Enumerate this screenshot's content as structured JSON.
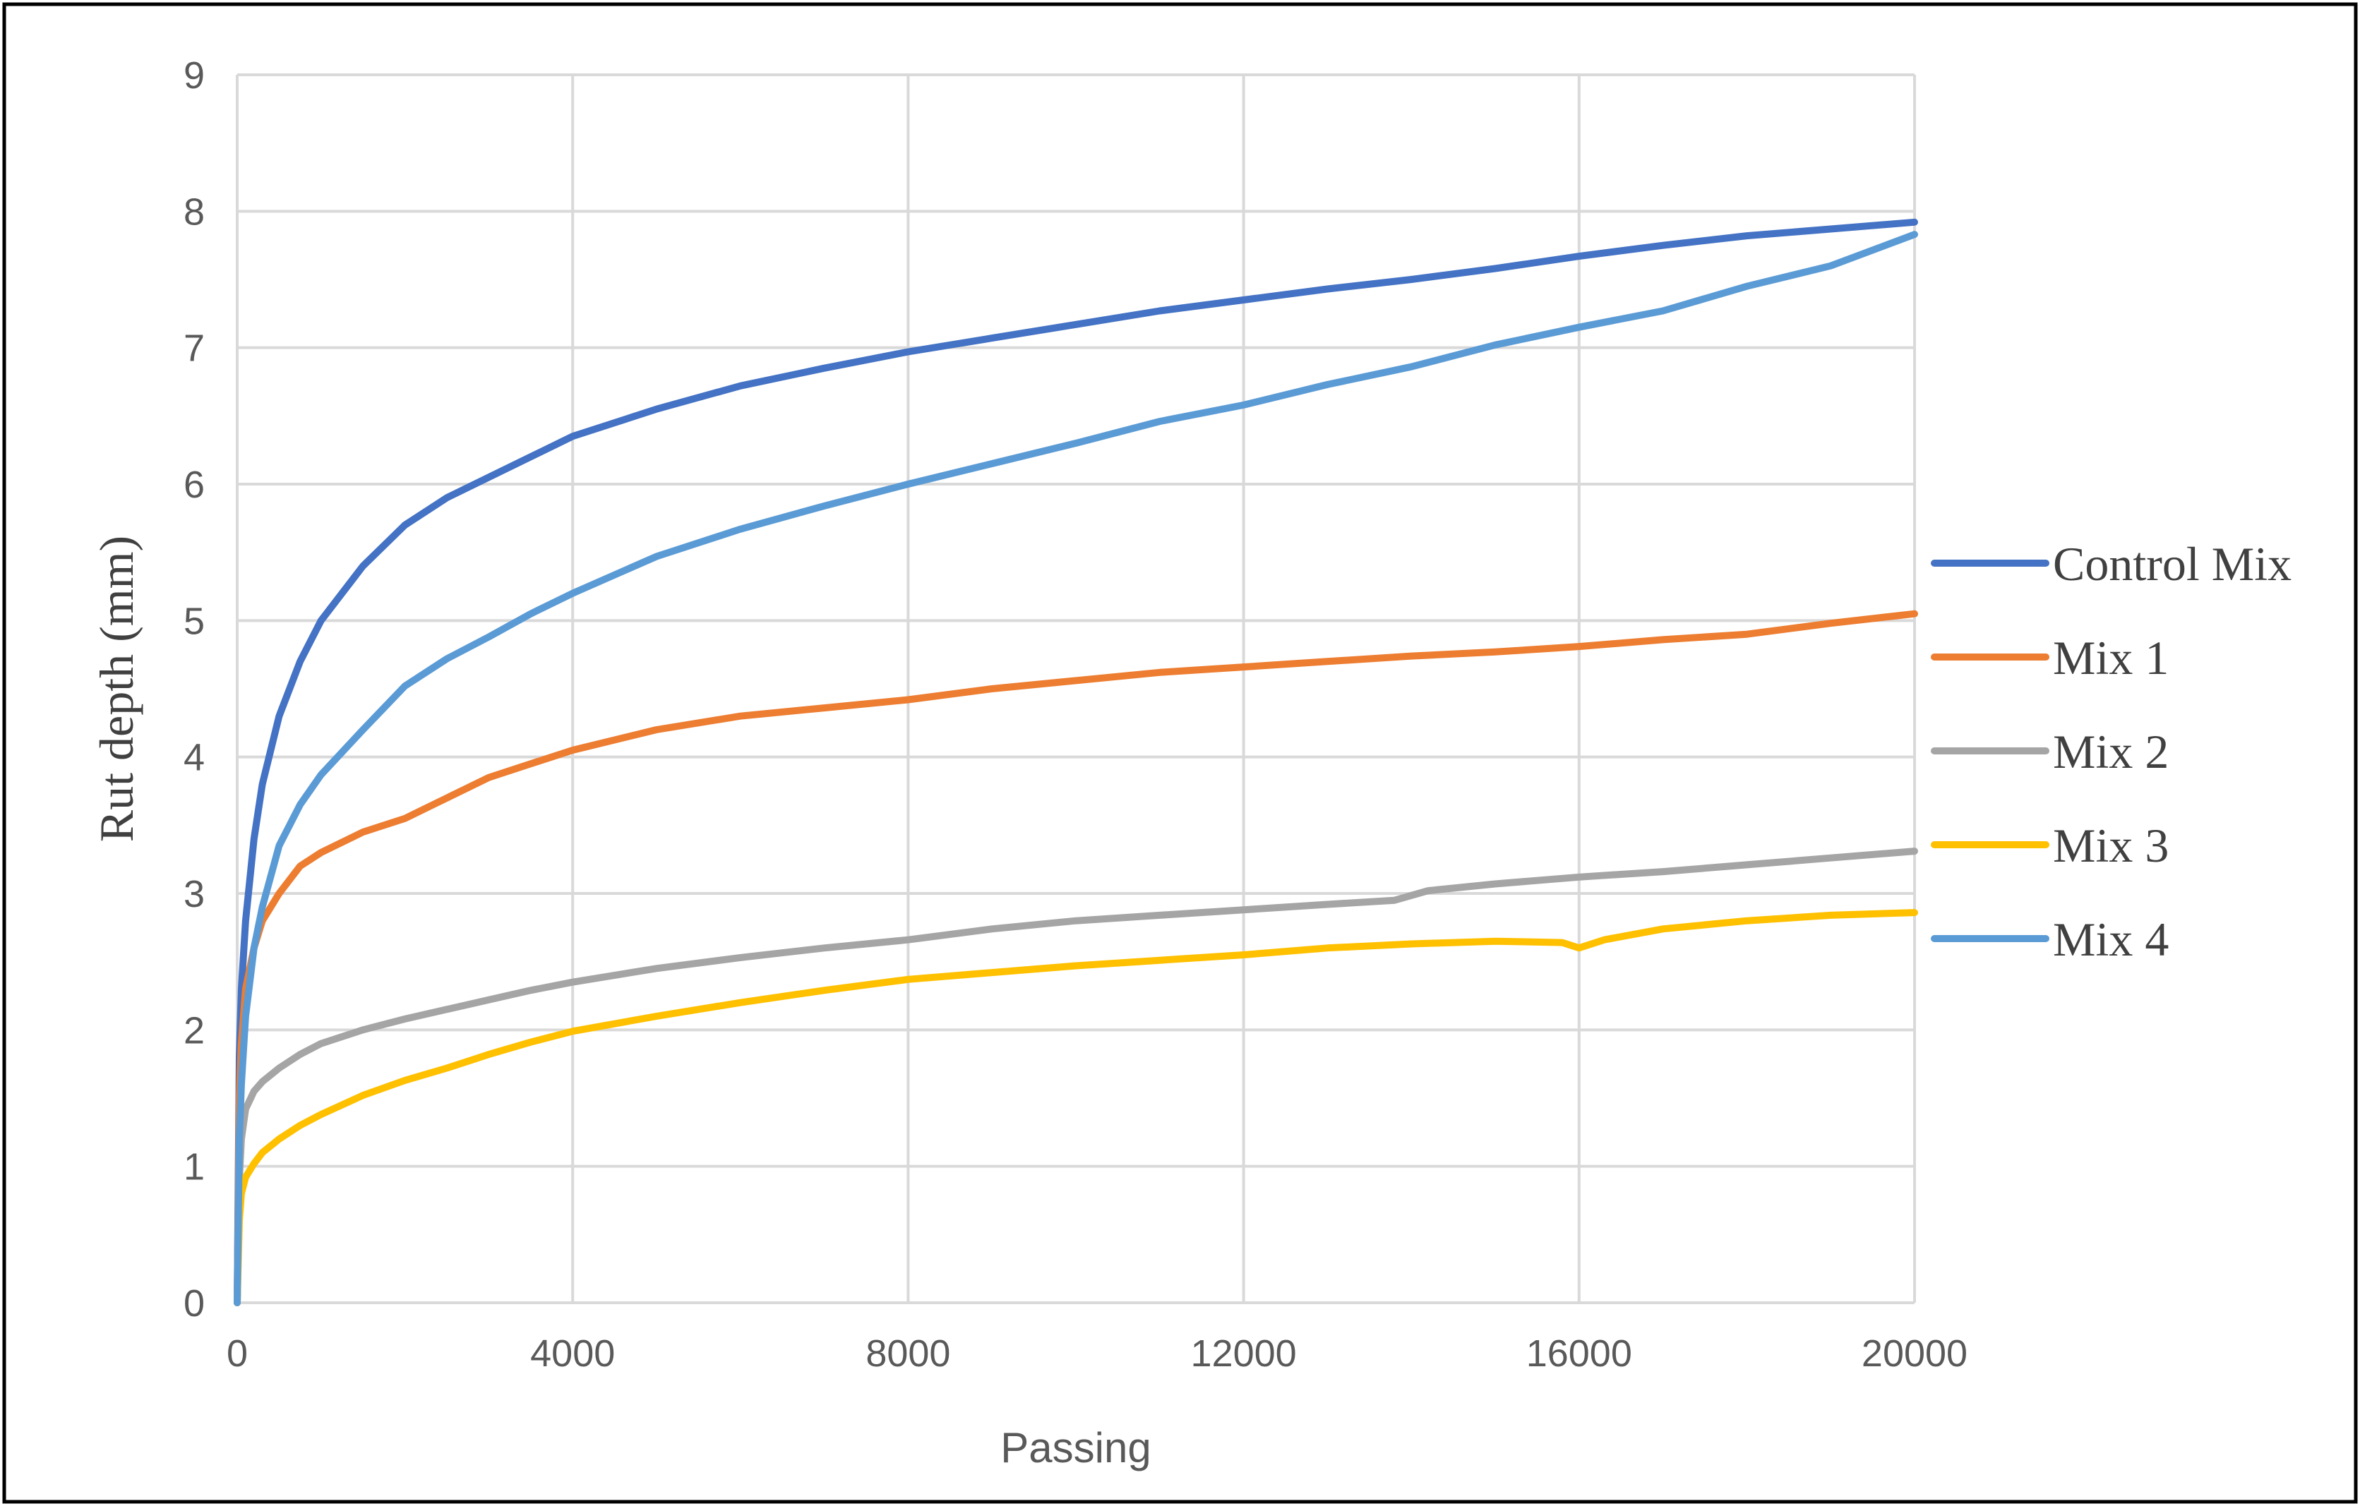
{
  "chart_data": {
    "type": "line",
    "title": "",
    "xlabel": "Passing",
    "ylabel": "Rut depth (mm)",
    "xlim": [
      0,
      20000
    ],
    "ylim": [
      0,
      9
    ],
    "x_ticks": [
      "0",
      "4000",
      "8000",
      "12000",
      "16000",
      "20000"
    ],
    "y_ticks": [
      "0",
      "1",
      "2",
      "3",
      "4",
      "5",
      "6",
      "7",
      "8",
      "9"
    ],
    "grid": true,
    "legend_position": "right",
    "series": [
      {
        "name": "Control Mix",
        "color": "#4472C4",
        "points": [
          [
            0,
            0
          ],
          [
            25,
            1.8
          ],
          [
            50,
            2.3
          ],
          [
            100,
            2.8
          ],
          [
            200,
            3.4
          ],
          [
            300,
            3.8
          ],
          [
            500,
            4.3
          ],
          [
            750,
            4.7
          ],
          [
            1000,
            5.0
          ],
          [
            1500,
            5.4
          ],
          [
            2000,
            5.7
          ],
          [
            2500,
            5.9
          ],
          [
            3000,
            6.05
          ],
          [
            3500,
            6.2
          ],
          [
            4000,
            6.35
          ],
          [
            5000,
            6.55
          ],
          [
            6000,
            6.72
          ],
          [
            7000,
            6.85
          ],
          [
            8000,
            6.97
          ],
          [
            9000,
            7.07
          ],
          [
            10000,
            7.17
          ],
          [
            11000,
            7.27
          ],
          [
            12000,
            7.35
          ],
          [
            13000,
            7.43
          ],
          [
            14000,
            7.5
          ],
          [
            15000,
            7.58
          ],
          [
            16000,
            7.67
          ],
          [
            17000,
            7.75
          ],
          [
            18000,
            7.82
          ],
          [
            19000,
            7.87
          ],
          [
            20000,
            7.92
          ]
        ]
      },
      {
        "name": "Mix 1",
        "color": "#ED7D31",
        "points": [
          [
            0,
            0
          ],
          [
            25,
            1.5
          ],
          [
            50,
            1.9
          ],
          [
            100,
            2.3
          ],
          [
            200,
            2.6
          ],
          [
            300,
            2.8
          ],
          [
            500,
            3.0
          ],
          [
            750,
            3.2
          ],
          [
            1000,
            3.3
          ],
          [
            1500,
            3.45
          ],
          [
            2000,
            3.55
          ],
          [
            2500,
            3.7
          ],
          [
            3000,
            3.85
          ],
          [
            3500,
            3.95
          ],
          [
            4000,
            4.05
          ],
          [
            5000,
            4.2
          ],
          [
            6000,
            4.3
          ],
          [
            7000,
            4.36
          ],
          [
            8000,
            4.42
          ],
          [
            9000,
            4.5
          ],
          [
            10000,
            4.56
          ],
          [
            11000,
            4.62
          ],
          [
            12000,
            4.66
          ],
          [
            13000,
            4.7
          ],
          [
            14000,
            4.74
          ],
          [
            15000,
            4.77
          ],
          [
            16000,
            4.81
          ],
          [
            17000,
            4.86
          ],
          [
            18000,
            4.9
          ],
          [
            19000,
            4.98
          ],
          [
            20000,
            5.05
          ]
        ]
      },
      {
        "name": "Mix 2",
        "color": "#A5A5A5",
        "points": [
          [
            0,
            0
          ],
          [
            25,
            0.9
          ],
          [
            50,
            1.2
          ],
          [
            100,
            1.42
          ],
          [
            200,
            1.55
          ],
          [
            300,
            1.62
          ],
          [
            500,
            1.72
          ],
          [
            750,
            1.82
          ],
          [
            1000,
            1.9
          ],
          [
            1500,
            2.0
          ],
          [
            2000,
            2.08
          ],
          [
            2500,
            2.15
          ],
          [
            3000,
            2.22
          ],
          [
            3500,
            2.29
          ],
          [
            4000,
            2.35
          ],
          [
            5000,
            2.45
          ],
          [
            6000,
            2.53
          ],
          [
            7000,
            2.6
          ],
          [
            8000,
            2.66
          ],
          [
            9000,
            2.74
          ],
          [
            10000,
            2.8
          ],
          [
            11000,
            2.84
          ],
          [
            12000,
            2.88
          ],
          [
            13000,
            2.92
          ],
          [
            13800,
            2.95
          ],
          [
            14200,
            3.02
          ],
          [
            15000,
            3.07
          ],
          [
            16000,
            3.12
          ],
          [
            17000,
            3.16
          ],
          [
            18000,
            3.21
          ],
          [
            19000,
            3.26
          ],
          [
            20000,
            3.31
          ]
        ]
      },
      {
        "name": "Mix 3",
        "color": "#FFC000",
        "points": [
          [
            0,
            0
          ],
          [
            25,
            0.6
          ],
          [
            50,
            0.8
          ],
          [
            100,
            0.92
          ],
          [
            200,
            1.02
          ],
          [
            300,
            1.1
          ],
          [
            500,
            1.2
          ],
          [
            750,
            1.3
          ],
          [
            1000,
            1.38
          ],
          [
            1500,
            1.52
          ],
          [
            2000,
            1.63
          ],
          [
            2500,
            1.72
          ],
          [
            3000,
            1.82
          ],
          [
            3500,
            1.91
          ],
          [
            4000,
            1.99
          ],
          [
            5000,
            2.1
          ],
          [
            6000,
            2.2
          ],
          [
            7000,
            2.29
          ],
          [
            8000,
            2.37
          ],
          [
            9000,
            2.42
          ],
          [
            10000,
            2.47
          ],
          [
            11000,
            2.51
          ],
          [
            12000,
            2.55
          ],
          [
            13000,
            2.6
          ],
          [
            14000,
            2.63
          ],
          [
            15000,
            2.65
          ],
          [
            15800,
            2.64
          ],
          [
            16000,
            2.6
          ],
          [
            16300,
            2.66
          ],
          [
            17000,
            2.74
          ],
          [
            18000,
            2.8
          ],
          [
            19000,
            2.84
          ],
          [
            20000,
            2.86
          ]
        ]
      },
      {
        "name": "Mix 4",
        "color": "#5B9BD5",
        "points": [
          [
            0,
            0
          ],
          [
            25,
            1.2
          ],
          [
            50,
            1.6
          ],
          [
            100,
            2.1
          ],
          [
            200,
            2.6
          ],
          [
            300,
            2.9
          ],
          [
            500,
            3.35
          ],
          [
            750,
            3.65
          ],
          [
            1000,
            3.87
          ],
          [
            1500,
            4.2
          ],
          [
            2000,
            4.52
          ],
          [
            2500,
            4.72
          ],
          [
            3000,
            4.88
          ],
          [
            3500,
            5.05
          ],
          [
            4000,
            5.2
          ],
          [
            5000,
            5.47
          ],
          [
            6000,
            5.67
          ],
          [
            7000,
            5.84
          ],
          [
            8000,
            6.0
          ],
          [
            9000,
            6.15
          ],
          [
            10000,
            6.3
          ],
          [
            11000,
            6.46
          ],
          [
            12000,
            6.58
          ],
          [
            13000,
            6.73
          ],
          [
            14000,
            6.86
          ],
          [
            15000,
            7.02
          ],
          [
            16000,
            7.15
          ],
          [
            17000,
            7.27
          ],
          [
            18000,
            7.45
          ],
          [
            19000,
            7.6
          ],
          [
            20000,
            7.83
          ]
        ]
      }
    ]
  }
}
